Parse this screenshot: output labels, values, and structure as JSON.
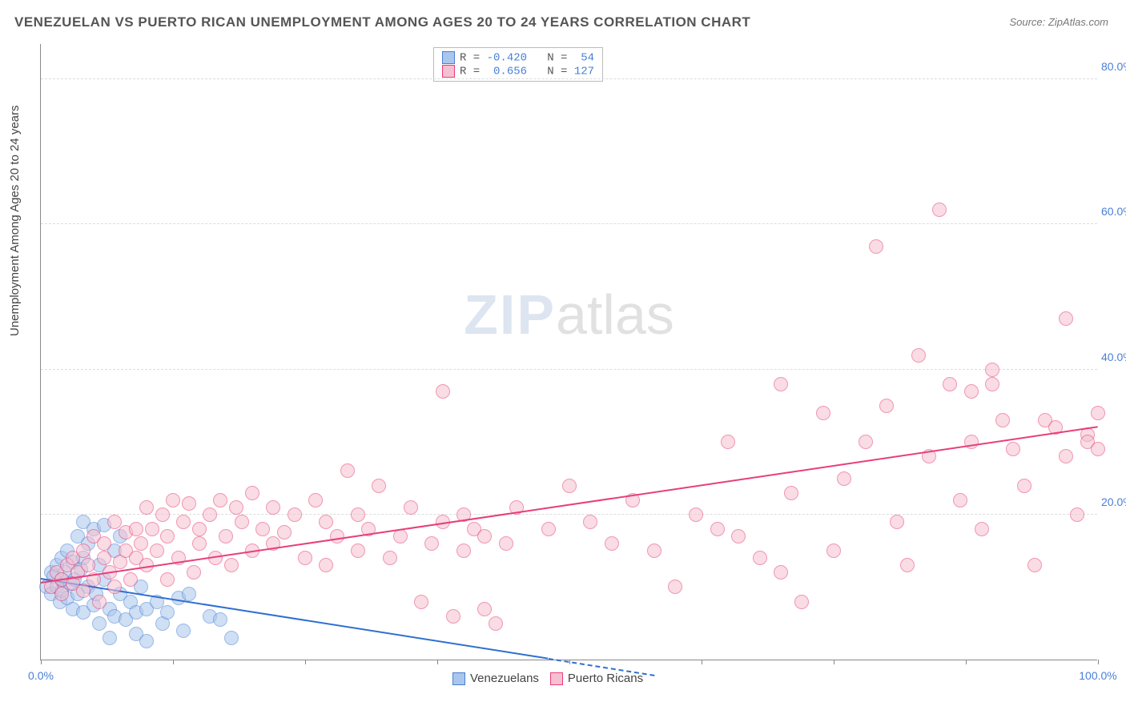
{
  "title": "VENEZUELAN VS PUERTO RICAN UNEMPLOYMENT AMONG AGES 20 TO 24 YEARS CORRELATION CHART",
  "source": "Source: ZipAtlas.com",
  "ylabel": "Unemployment Among Ages 20 to 24 years",
  "watermark": {
    "part1": "ZIP",
    "part2": "atlas"
  },
  "chart": {
    "type": "scatter",
    "background_color": "#ffffff",
    "grid_color": "#dddddd",
    "axis_color": "#888888",
    "xlim": [
      0,
      100
    ],
    "ylim": [
      0,
      85
    ],
    "xticks": [
      0,
      12.5,
      25,
      37.5,
      50,
      62.5,
      75,
      87.5,
      100
    ],
    "xtick_labels": {
      "0": "0.0%",
      "100": "100.0%"
    },
    "yticks": [
      20,
      40,
      60,
      80
    ],
    "ytick_format": "{v}.0%",
    "tick_label_color": "#4a7fd6",
    "tick_label_fontsize": 14,
    "marker_radius": 9,
    "marker_opacity": 0.55,
    "series": [
      {
        "id": "venezuelans",
        "name": "Venezuelans",
        "fill_color": "#a9c6ec",
        "stroke_color": "#4a7fd6",
        "R": "-0.420",
        "N": "54",
        "trend": {
          "x1": 0,
          "y1": 11,
          "x2": 48,
          "y2": 0,
          "color": "#2f6fd0",
          "width": 2
        },
        "trend_dashed_ext": {
          "x1": 48,
          "y1": 0,
          "x2": 58,
          "y2": -2.3,
          "color": "#2f6fd0"
        },
        "points": [
          [
            0.5,
            10
          ],
          [
            1,
            12
          ],
          [
            1,
            9
          ],
          [
            1.2,
            11.5
          ],
          [
            1.5,
            13
          ],
          [
            1.5,
            10
          ],
          [
            1.8,
            8
          ],
          [
            2,
            14
          ],
          [
            2,
            11
          ],
          [
            2,
            9.5
          ],
          [
            2.3,
            12
          ],
          [
            2.5,
            15
          ],
          [
            2.5,
            8.5
          ],
          [
            2.8,
            10.5
          ],
          [
            3,
            13.5
          ],
          [
            3,
            7
          ],
          [
            3.2,
            11
          ],
          [
            3.5,
            17
          ],
          [
            3.5,
            9
          ],
          [
            3.8,
            12.5
          ],
          [
            4,
            19
          ],
          [
            4,
            14
          ],
          [
            4,
            6.5
          ],
          [
            4.5,
            16
          ],
          [
            4.5,
            10
          ],
          [
            5,
            18
          ],
          [
            5,
            7.5
          ],
          [
            5.2,
            9
          ],
          [
            5.5,
            13
          ],
          [
            5.5,
            5
          ],
          [
            6,
            18.5
          ],
          [
            6,
            11
          ],
          [
            6.5,
            7
          ],
          [
            6.5,
            3
          ],
          [
            7,
            15
          ],
          [
            7,
            6
          ],
          [
            7.5,
            17
          ],
          [
            7.5,
            9
          ],
          [
            8,
            5.5
          ],
          [
            8.5,
            8
          ],
          [
            9,
            6.5
          ],
          [
            9,
            3.5
          ],
          [
            9.5,
            10
          ],
          [
            10,
            7
          ],
          [
            10,
            2.5
          ],
          [
            11,
            8
          ],
          [
            11.5,
            5
          ],
          [
            12,
            6.5
          ],
          [
            13,
            8.5
          ],
          [
            13.5,
            4
          ],
          [
            14,
            9
          ],
          [
            16,
            6
          ],
          [
            17,
            5.5
          ],
          [
            18,
            3
          ]
        ]
      },
      {
        "id": "puerto_ricans",
        "name": "Puerto Ricans",
        "fill_color": "#f5c0cf",
        "stroke_color": "#e83e7a",
        "R": "0.656",
        "N": "127",
        "trend": {
          "x1": 0,
          "y1": 10.5,
          "x2": 100,
          "y2": 32,
          "color": "#e83e7a",
          "width": 2
        },
        "points": [
          [
            1,
            10
          ],
          [
            1.5,
            12
          ],
          [
            2,
            11
          ],
          [
            2,
            9
          ],
          [
            2.5,
            13
          ],
          [
            3,
            10.5
          ],
          [
            3,
            14
          ],
          [
            3.5,
            12
          ],
          [
            4,
            9.5
          ],
          [
            4,
            15
          ],
          [
            4.5,
            13
          ],
          [
            5,
            17
          ],
          [
            5,
            11
          ],
          [
            5.5,
            8
          ],
          [
            6,
            16
          ],
          [
            6,
            14
          ],
          [
            6.5,
            12
          ],
          [
            7,
            19
          ],
          [
            7,
            10
          ],
          [
            7.5,
            13.5
          ],
          [
            8,
            17.5
          ],
          [
            8,
            15
          ],
          [
            8.5,
            11
          ],
          [
            9,
            18
          ],
          [
            9,
            14
          ],
          [
            9.5,
            16
          ],
          [
            10,
            21
          ],
          [
            10,
            13
          ],
          [
            10.5,
            18
          ],
          [
            11,
            15
          ],
          [
            11.5,
            20
          ],
          [
            12,
            17
          ],
          [
            12,
            11
          ],
          [
            12.5,
            22
          ],
          [
            13,
            14
          ],
          [
            13.5,
            19
          ],
          [
            14,
            21.5
          ],
          [
            14.5,
            12
          ],
          [
            15,
            18
          ],
          [
            15,
            16
          ],
          [
            16,
            20
          ],
          [
            16.5,
            14
          ],
          [
            17,
            22
          ],
          [
            17.5,
            17
          ],
          [
            18,
            13
          ],
          [
            18.5,
            21
          ],
          [
            19,
            19
          ],
          [
            20,
            15
          ],
          [
            20,
            23
          ],
          [
            21,
            18
          ],
          [
            22,
            16
          ],
          [
            22,
            21
          ],
          [
            23,
            17.5
          ],
          [
            24,
            20
          ],
          [
            25,
            14
          ],
          [
            26,
            22
          ],
          [
            27,
            13
          ],
          [
            27,
            19
          ],
          [
            28,
            17
          ],
          [
            29,
            26
          ],
          [
            30,
            15
          ],
          [
            30,
            20
          ],
          [
            31,
            18
          ],
          [
            32,
            24
          ],
          [
            33,
            14
          ],
          [
            34,
            17
          ],
          [
            35,
            21
          ],
          [
            36,
            8
          ],
          [
            37,
            16
          ],
          [
            38,
            37
          ],
          [
            38,
            19
          ],
          [
            39,
            6
          ],
          [
            40,
            15
          ],
          [
            40,
            20
          ],
          [
            41,
            18
          ],
          [
            42,
            7
          ],
          [
            42,
            17
          ],
          [
            43,
            5
          ],
          [
            44,
            16
          ],
          [
            45,
            21
          ],
          [
            48,
            18
          ],
          [
            50,
            24
          ],
          [
            52,
            19
          ],
          [
            54,
            16
          ],
          [
            56,
            22
          ],
          [
            58,
            15
          ],
          [
            60,
            10
          ],
          [
            62,
            20
          ],
          [
            64,
            18
          ],
          [
            65,
            30
          ],
          [
            66,
            17
          ],
          [
            68,
            14
          ],
          [
            70,
            12
          ],
          [
            70,
            38
          ],
          [
            71,
            23
          ],
          [
            72,
            8
          ],
          [
            74,
            34
          ],
          [
            75,
            15
          ],
          [
            76,
            25
          ],
          [
            78,
            30
          ],
          [
            79,
            57
          ],
          [
            80,
            35
          ],
          [
            81,
            19
          ],
          [
            82,
            13
          ],
          [
            83,
            42
          ],
          [
            84,
            28
          ],
          [
            85,
            62
          ],
          [
            86,
            38
          ],
          [
            87,
            22
          ],
          [
            88,
            30
          ],
          [
            88,
            37
          ],
          [
            89,
            18
          ],
          [
            90,
            40
          ],
          [
            90,
            38
          ],
          [
            91,
            33
          ],
          [
            92,
            29
          ],
          [
            93,
            24
          ],
          [
            94,
            13
          ],
          [
            95,
            33
          ],
          [
            96,
            32
          ],
          [
            97,
            28
          ],
          [
            97,
            47
          ],
          [
            98,
            20
          ],
          [
            99,
            31
          ],
          [
            99,
            30
          ],
          [
            100,
            34
          ],
          [
            100,
            29
          ]
        ]
      }
    ],
    "legend_top": {
      "border_color": "#bbbbbb",
      "label_color": "#555555",
      "value_color": "#4a7fd6",
      "r_label": "R =",
      "n_label": "N ="
    },
    "legend_bottom": {
      "items": [
        {
          "series": "venezuelans",
          "label": "Venezuelans"
        },
        {
          "series": "puerto_ricans",
          "label": "Puerto Ricans"
        }
      ]
    }
  }
}
